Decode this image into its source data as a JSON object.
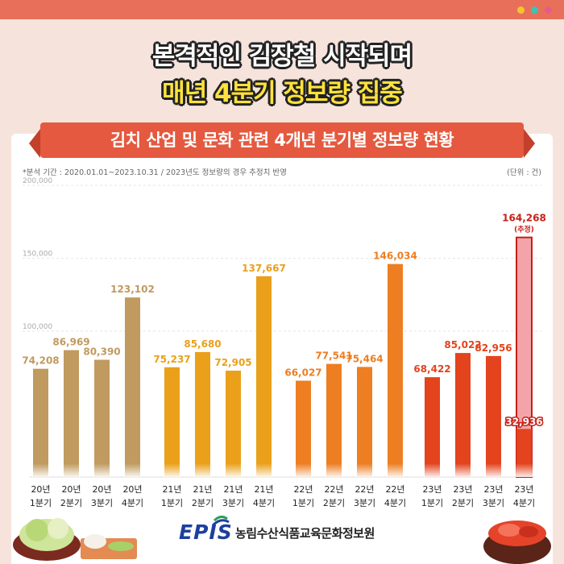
{
  "header": {
    "title_line1": "본격적인 김장철 시작되며",
    "title_line2": "매년 4분기 정보량 집중"
  },
  "banner": {
    "title": "김치 산업 및 문화 관련 4개년 분기별 정보량 현황"
  },
  "notes": {
    "left": "*분석 기간 : 2020.01.01~2023.10.31 / 2023년도 정보량의 경우 추정치 반영",
    "right": "(단위 : 건)"
  },
  "footer": {
    "brand": "EPIS",
    "org": "농림수산식품교육문화정보원"
  },
  "colors": {
    "topbar": "#e8705a",
    "background": "#f6e4dc",
    "banner": "#e4593f",
    "year_2020": "#c09a5e",
    "year_2021": "#eaa01a",
    "year_2022": "#ed7e22",
    "year_2023": "#e3431d",
    "estimate_fill": "#f4a4a8",
    "estimate_text": "#c42118"
  },
  "chart_data": {
    "type": "bar",
    "title": "김치 산업 및 문화 관련 4개년 분기별 정보량 현황",
    "unit": "건",
    "ylim": [
      0,
      200000
    ],
    "yticks": [
      "200,000",
      "150,000",
      "100,000"
    ],
    "grid": true,
    "groups": [
      {
        "year": "2020",
        "bars": [
          {
            "label_year": "20년",
            "label_q": "1분기",
            "value": 74208,
            "display": "74,208"
          },
          {
            "label_year": "20년",
            "label_q": "2분기",
            "value": 86969,
            "display": "86,969"
          },
          {
            "label_year": "20년",
            "label_q": "3분기",
            "value": 80390,
            "display": "80,390"
          },
          {
            "label_year": "20년",
            "label_q": "4분기",
            "value": 123102,
            "display": "123,102"
          }
        ]
      },
      {
        "year": "2021",
        "bars": [
          {
            "label_year": "21년",
            "label_q": "1분기",
            "value": 75237,
            "display": "75,237"
          },
          {
            "label_year": "21년",
            "label_q": "2분기",
            "value": 85680,
            "display": "85,680"
          },
          {
            "label_year": "21년",
            "label_q": "3분기",
            "value": 72905,
            "display": "72,905"
          },
          {
            "label_year": "21년",
            "label_q": "4분기",
            "value": 137667,
            "display": "137,667"
          }
        ]
      },
      {
        "year": "2022",
        "bars": [
          {
            "label_year": "22년",
            "label_q": "1분기",
            "value": 66027,
            "display": "66,027"
          },
          {
            "label_year": "22년",
            "label_q": "2분기",
            "value": 77541,
            "display": "77,541"
          },
          {
            "label_year": "22년",
            "label_q": "3분기",
            "value": 75464,
            "display": "75,464"
          },
          {
            "label_year": "22년",
            "label_q": "4분기",
            "value": 146034,
            "display": "146,034"
          }
        ]
      },
      {
        "year": "2023",
        "bars": [
          {
            "label_year": "23년",
            "label_q": "1분기",
            "value": 68422,
            "display": "68,422"
          },
          {
            "label_year": "23년",
            "label_q": "2분기",
            "value": 85022,
            "display": "85,022"
          },
          {
            "label_year": "23년",
            "label_q": "3분기",
            "value": 82956,
            "display": "82,956"
          },
          {
            "label_year": "23년",
            "label_q": "4분기",
            "value": 164268,
            "display": "164,268",
            "estimate_note": "(추정)",
            "actual_value": 32936,
            "actual_display": "32,936"
          }
        ]
      }
    ]
  }
}
